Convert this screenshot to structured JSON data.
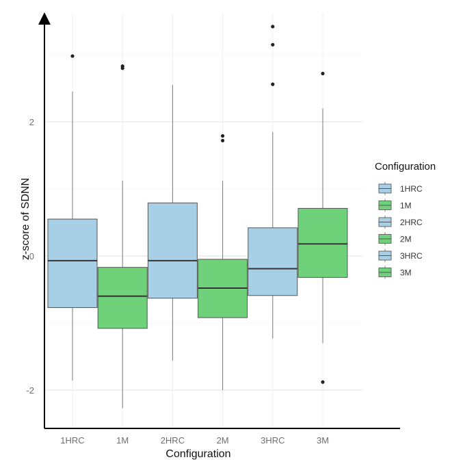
{
  "chart_data": {
    "type": "box",
    "xlabel": "Configuration",
    "ylabel": "z-score of SDNN",
    "ylim": [
      -2.5,
      3.6
    ],
    "yticks": [
      -2,
      0,
      2
    ],
    "grid": true,
    "legend": {
      "title": "Configuration",
      "placement": "right",
      "entries": [
        {
          "label": "1HRC",
          "color": "#a7cfe5"
        },
        {
          "label": "1M",
          "color": "#6fd27a"
        },
        {
          "label": "2HRC",
          "color": "#a7cfe5"
        },
        {
          "label": "2M",
          "color": "#6fd27a"
        },
        {
          "label": "3HRC",
          "color": "#a7cfe5"
        },
        {
          "label": "3M",
          "color": "#6fd27a"
        }
      ]
    },
    "categories": [
      "1HRC",
      "1M",
      "2HRC",
      "2M",
      "3HRC",
      "3M"
    ],
    "boxes": [
      {
        "category": "1HRC",
        "color": "#a7cfe5",
        "whisker_low": -1.86,
        "q1": -0.77,
        "median": -0.07,
        "q3": 0.55,
        "whisker_high": 2.45,
        "outliers": [
          2.98
        ]
      },
      {
        "category": "1M",
        "color": "#6fd27a",
        "whisker_low": -2.27,
        "q1": -1.08,
        "median": -0.6,
        "q3": -0.17,
        "whisker_high": 1.12,
        "outliers": [
          2.8,
          2.83
        ]
      },
      {
        "category": "2HRC",
        "color": "#a7cfe5",
        "whisker_low": -1.56,
        "q1": -0.63,
        "median": -0.07,
        "q3": 0.79,
        "whisker_high": 2.55,
        "outliers": []
      },
      {
        "category": "2M",
        "color": "#6fd27a",
        "whisker_low": -2.0,
        "q1": -0.92,
        "median": -0.48,
        "q3": -0.05,
        "whisker_high": 1.12,
        "outliers": [
          1.72,
          1.79
        ]
      },
      {
        "category": "3HRC",
        "color": "#a7cfe5",
        "whisker_low": -1.23,
        "q1": -0.59,
        "median": -0.19,
        "q3": 0.42,
        "whisker_high": 1.85,
        "outliers": [
          2.56,
          3.15,
          3.42
        ]
      },
      {
        "category": "3M",
        "color": "#6fd27a",
        "whisker_low": -1.3,
        "q1": -0.32,
        "median": 0.18,
        "q3": 0.71,
        "whisker_high": 2.2,
        "outliers": [
          2.72,
          -1.88
        ]
      }
    ]
  }
}
